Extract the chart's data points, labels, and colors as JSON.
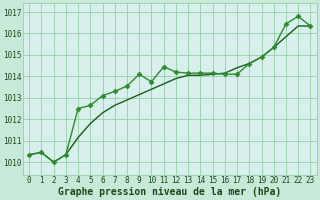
{
  "title": "Graphe pression niveau de la mer (hPa)",
  "fig_bg_color": "#c8e8d8",
  "plot_bg_color": "#d8f0ec",
  "grid_color": "#99ccaa",
  "line_color_smooth": "#1a5c1a",
  "line_color_jagged": "#2d8a2d",
  "xlim": [
    -0.5,
    23.5
  ],
  "ylim": [
    1009.4,
    1017.4
  ],
  "yticks": [
    1010,
    1011,
    1012,
    1013,
    1014,
    1015,
    1016,
    1017
  ],
  "xticks": [
    0,
    1,
    2,
    3,
    4,
    5,
    6,
    7,
    8,
    9,
    10,
    11,
    12,
    13,
    14,
    15,
    16,
    17,
    18,
    19,
    20,
    21,
    22,
    23
  ],
  "series_jagged": {
    "x": [
      0,
      1,
      2,
      3,
      4,
      5,
      6,
      7,
      8,
      9,
      10,
      11,
      12,
      13,
      14,
      15,
      16,
      17,
      18,
      19,
      20,
      21,
      22,
      23
    ],
    "y": [
      1010.35,
      1010.45,
      1010.0,
      1010.35,
      1012.5,
      1012.65,
      1013.1,
      1013.3,
      1013.55,
      1014.1,
      1013.75,
      1014.45,
      1014.2,
      1014.15,
      1014.15,
      1014.15,
      1014.1,
      1014.1,
      1014.6,
      1014.9,
      1015.35,
      1016.45,
      1016.8,
      1016.35
    ]
  },
  "series_smooth": {
    "x": [
      0,
      1,
      2,
      3,
      4,
      5,
      6,
      7,
      8,
      9,
      10,
      11,
      12,
      13,
      14,
      15,
      16,
      17,
      18,
      19,
      20,
      21,
      22,
      23
    ],
    "y": [
      1010.35,
      1010.45,
      1010.0,
      1010.35,
      1011.15,
      1011.8,
      1012.3,
      1012.65,
      1012.9,
      1013.15,
      1013.4,
      1013.65,
      1013.9,
      1014.05,
      1014.05,
      1014.1,
      1014.15,
      1014.4,
      1014.6,
      1014.9,
      1015.35,
      1015.85,
      1016.35,
      1016.35
    ]
  },
  "marker": "D",
  "markersize": 2.5,
  "linewidth": 1.0,
  "tick_fontsize": 5.5,
  "label_fontsize": 7.0,
  "tick_color": "#1a4a1a",
  "label_color": "#1a4a1a"
}
